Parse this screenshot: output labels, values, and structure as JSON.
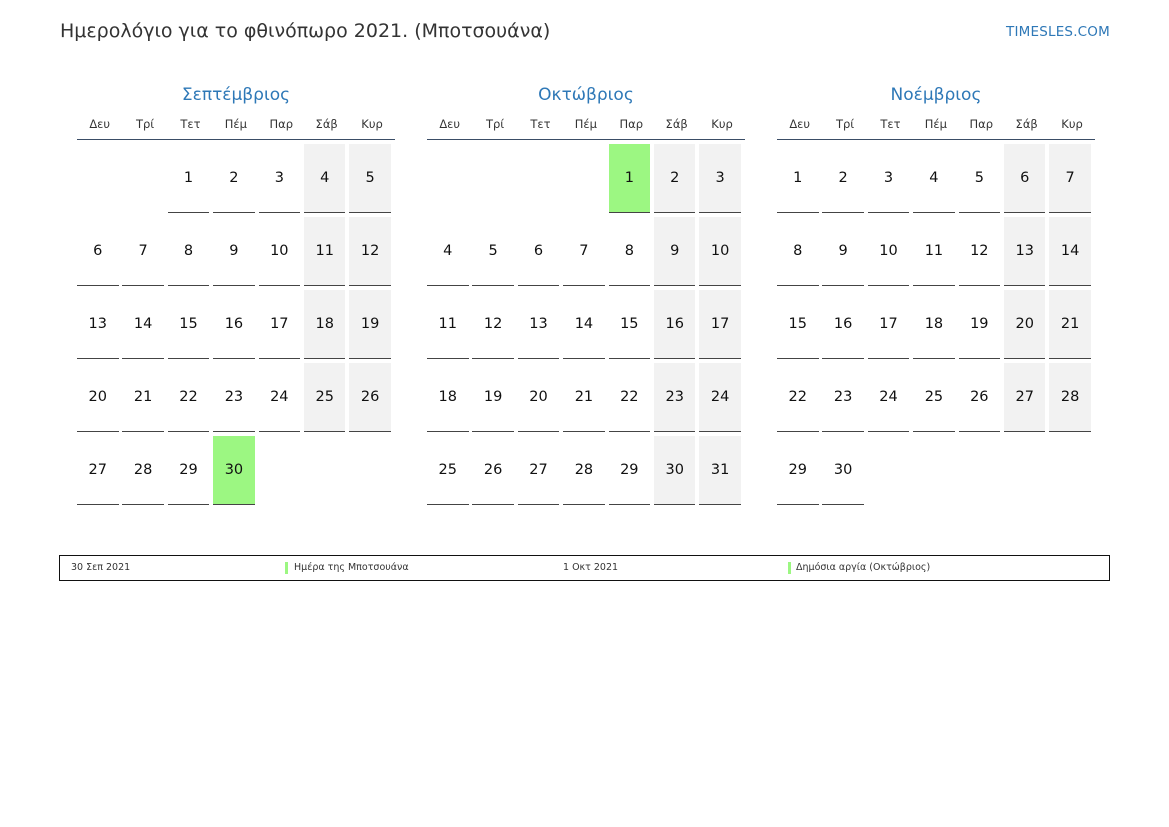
{
  "header": {
    "title": "Ημερολόγιο για το φθινόπωρο 2021. (Μποτσουάνα)",
    "site": "TIMESLES.COM"
  },
  "weekdays": [
    "Δευ",
    "Τρί",
    "Τετ",
    "Πέμ",
    "Παρ",
    "Σάβ",
    "Κυρ"
  ],
  "months": [
    {
      "name": "Σεπτέμβριος",
      "start_offset": 2,
      "days": 30,
      "holidays": [
        30
      ]
    },
    {
      "name": "Οκτώβριος",
      "start_offset": 4,
      "days": 31,
      "holidays": [
        1
      ]
    },
    {
      "name": "Νοέμβριος",
      "start_offset": 0,
      "days": 30,
      "holidays": []
    }
  ],
  "legend": [
    {
      "date": "30 Σεπ 2021",
      "name": "Ημέρα της Μποτσουάνα"
    },
    {
      "date": "1 Οκτ 2021",
      "name": "Δημόσια αργία (Οκτώβριος)"
    }
  ],
  "colors": {
    "accent": "#2e78b7",
    "holiday": "#9cf782",
    "weekend": "#f2f2f2"
  }
}
